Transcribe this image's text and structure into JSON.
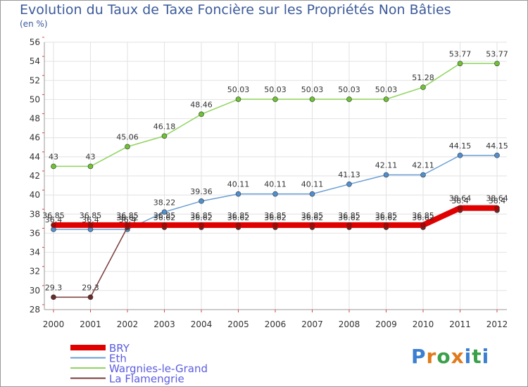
{
  "chart_data": {
    "type": "line",
    "title": "Evolution du Taux de Taxe Foncière sur les Propriétés Non Bâties",
    "ylabel": "(en %)",
    "xlabel": "",
    "ylim": [
      28,
      56
    ],
    "yticks": [
      28,
      30,
      32,
      34,
      36,
      38,
      40,
      42,
      44,
      46,
      48,
      50,
      52,
      54,
      56
    ],
    "categories": [
      "2000",
      "2001",
      "2002",
      "2003",
      "2004",
      "2005",
      "2006",
      "2007",
      "2008",
      "2009",
      "2010",
      "2011",
      "2012"
    ],
    "series": [
      {
        "name": "Wargnies-le-Grand",
        "color": "#8fd45e",
        "marker": "#6ec332",
        "width": 1.5,
        "values": [
          43,
          43,
          45.06,
          46.18,
          48.46,
          50.03,
          50.03,
          50.03,
          50.03,
          50.03,
          51.28,
          53.77,
          53.77
        ],
        "labels": [
          "43",
          "43",
          "45.06",
          "46.18",
          "48.46",
          "50.03",
          "50.03",
          "50.03",
          "50.03",
          "50.03",
          "51.28",
          "53.77",
          "53.77"
        ]
      },
      {
        "name": "Eth",
        "color": "#6a9fd4",
        "marker": "#4f8fd0",
        "width": 1.5,
        "values": [
          36.4,
          36.4,
          36.4,
          38.22,
          39.36,
          40.11,
          40.11,
          40.11,
          41.13,
          42.11,
          42.11,
          44.15,
          44.15
        ],
        "labels": [
          "36.4",
          "36.4",
          "36.4",
          "38.22",
          "39.36",
          "40.11",
          "40.11",
          "40.11",
          "41.13",
          "42.11",
          "42.11",
          "44.15",
          "44.15"
        ]
      },
      {
        "name": "La Flamengrie",
        "color": "#7a3b3b",
        "marker": "#6b2a2a",
        "width": 1.5,
        "values": [
          29.3,
          29.3,
          36.62,
          36.62,
          36.62,
          36.62,
          36.62,
          36.62,
          36.62,
          36.62,
          36.62,
          38.4,
          38.4
        ],
        "labels": [
          "29.3",
          "29.3",
          "36.62",
          "36.62",
          "36.62",
          "36.62",
          "36.62",
          "36.62",
          "36.62",
          "36.62",
          "36.62",
          "38.4",
          "38.4"
        ]
      },
      {
        "name": "BRY",
        "color": "#e00000",
        "marker": "#b00000",
        "width": 8,
        "values": [
          36.85,
          36.85,
          36.85,
          36.85,
          36.85,
          36.85,
          36.85,
          36.85,
          36.85,
          36.85,
          36.85,
          38.64,
          38.64
        ],
        "labels": [
          "36.85",
          "36.85",
          "36.85",
          "36.85",
          "36.85",
          "36.85",
          "36.85",
          "36.85",
          "36.85",
          "36.85",
          "36.85",
          "38.64",
          "38.64"
        ]
      }
    ],
    "legend": [
      "BRY",
      "Eth",
      "Wargnies-le-Grand",
      "La Flamengrie"
    ],
    "legend_colors": [
      "#e00000",
      "#6a9fd4",
      "#8fd45e",
      "#7a3b3b"
    ],
    "legend_position": "bottom-left"
  },
  "brand": {
    "text": "Proxiti",
    "letters": [
      "P",
      "r",
      "o",
      "x",
      "i",
      "t",
      "i"
    ],
    "colors": [
      "#3a7fd0",
      "#e07a1a",
      "#3aa04a",
      "#e07a1a",
      "#3a7fd0",
      "#3aa04a",
      "#3a7fd0"
    ]
  }
}
